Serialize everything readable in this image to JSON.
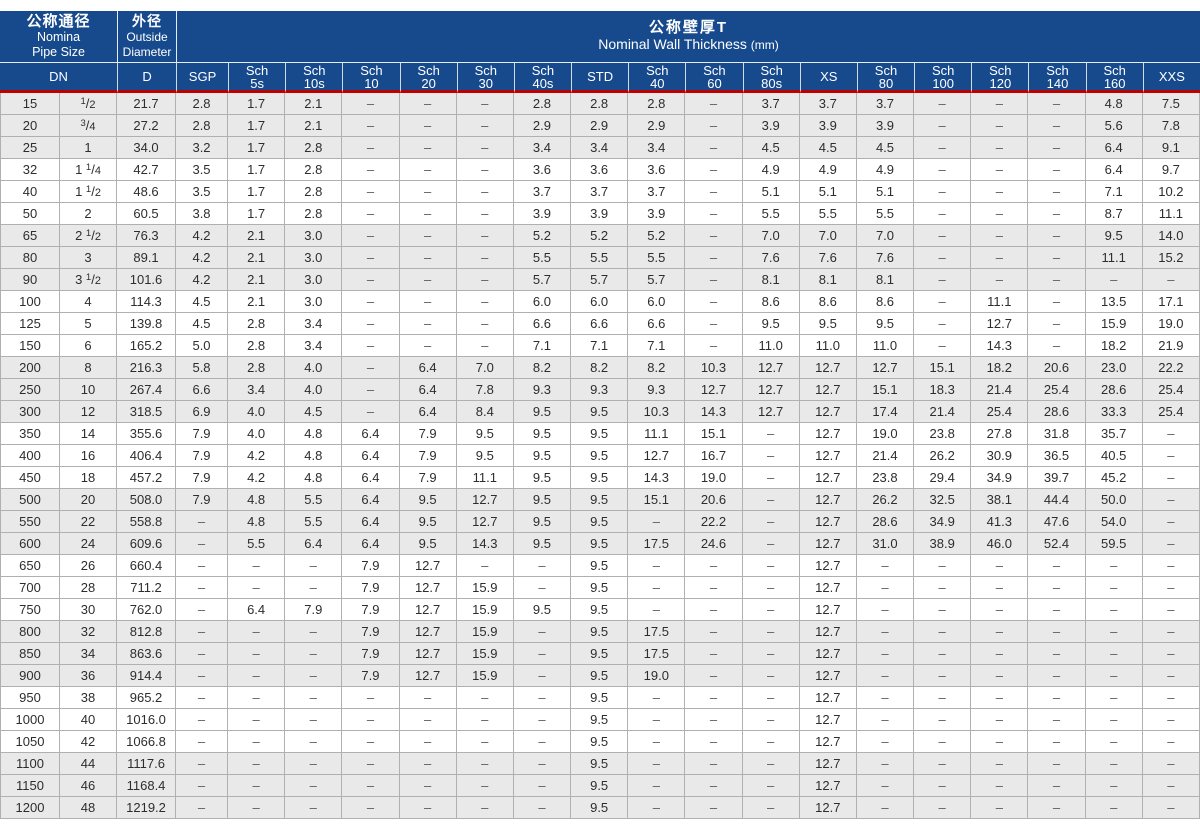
{
  "colors": {
    "header_blue": "#174a8d",
    "accent_red": "#bf0000",
    "stripe_gray": "#e9e9e9",
    "grid_gray": "#b0b0b0",
    "text": "#2d2d2d"
  },
  "header": {
    "pipe_size": {
      "zh": "公称通径",
      "en_line1": "Nomina",
      "en_line2": "Pipe Size"
    },
    "outside_diameter": {
      "zh": "外径",
      "en_line1": "Outside",
      "en_line2": "Diameter"
    },
    "wall_thickness": {
      "zh": "公称壁厚T",
      "en": "Nominal Wall Thickness",
      "unit": "(mm)"
    }
  },
  "sub_headers": [
    "DN",
    "D",
    "SGP",
    "Sch\n5s",
    "Sch\n10s",
    "Sch\n10",
    "Sch\n20",
    "Sch\n30",
    "Sch\n40s",
    "STD",
    "Sch\n40",
    "Sch\n60",
    "Sch\n80s",
    "XS",
    "Sch\n80",
    "Sch\n100",
    "Sch\n120",
    "Sch\n140",
    "Sch\n160",
    "XXS"
  ],
  "rows": [
    [
      "15",
      "1/2",
      "21.7",
      "2.8",
      "1.7",
      "2.1",
      "–",
      "–",
      "–",
      "2.8",
      "2.8",
      "2.8",
      "–",
      "3.7",
      "3.7",
      "3.7",
      "–",
      "–",
      "–",
      "4.8",
      "7.5"
    ],
    [
      "20",
      "3/4",
      "27.2",
      "2.8",
      "1.7",
      "2.1",
      "–",
      "–",
      "–",
      "2.9",
      "2.9",
      "2.9",
      "–",
      "3.9",
      "3.9",
      "3.9",
      "–",
      "–",
      "–",
      "5.6",
      "7.8"
    ],
    [
      "25",
      "1",
      "34.0",
      "3.2",
      "1.7",
      "2.8",
      "–",
      "–",
      "–",
      "3.4",
      "3.4",
      "3.4",
      "–",
      "4.5",
      "4.5",
      "4.5",
      "–",
      "–",
      "–",
      "6.4",
      "9.1"
    ],
    [
      "32",
      "1 1/4",
      "42.7",
      "3.5",
      "1.7",
      "2.8",
      "–",
      "–",
      "–",
      "3.6",
      "3.6",
      "3.6",
      "–",
      "4.9",
      "4.9",
      "4.9",
      "–",
      "–",
      "–",
      "6.4",
      "9.7"
    ],
    [
      "40",
      "1 1/2",
      "48.6",
      "3.5",
      "1.7",
      "2.8",
      "–",
      "–",
      "–",
      "3.7",
      "3.7",
      "3.7",
      "–",
      "5.1",
      "5.1",
      "5.1",
      "–",
      "–",
      "–",
      "7.1",
      "10.2"
    ],
    [
      "50",
      "2",
      "60.5",
      "3.8",
      "1.7",
      "2.8",
      "–",
      "–",
      "–",
      "3.9",
      "3.9",
      "3.9",
      "–",
      "5.5",
      "5.5",
      "5.5",
      "–",
      "–",
      "–",
      "8.7",
      "11.1"
    ],
    [
      "65",
      "2 1/2",
      "76.3",
      "4.2",
      "2.1",
      "3.0",
      "–",
      "–",
      "–",
      "5.2",
      "5.2",
      "5.2",
      "–",
      "7.0",
      "7.0",
      "7.0",
      "–",
      "–",
      "–",
      "9.5",
      "14.0"
    ],
    [
      "80",
      "3",
      "89.1",
      "4.2",
      "2.1",
      "3.0",
      "–",
      "–",
      "–",
      "5.5",
      "5.5",
      "5.5",
      "–",
      "7.6",
      "7.6",
      "7.6",
      "–",
      "–",
      "–",
      "11.1",
      "15.2"
    ],
    [
      "90",
      "3 1/2",
      "101.6",
      "4.2",
      "2.1",
      "3.0",
      "–",
      "–",
      "–",
      "5.7",
      "5.7",
      "5.7",
      "–",
      "8.1",
      "8.1",
      "8.1",
      "–",
      "–",
      "–",
      "–",
      "–"
    ],
    [
      "100",
      "4",
      "114.3",
      "4.5",
      "2.1",
      "3.0",
      "–",
      "–",
      "–",
      "6.0",
      "6.0",
      "6.0",
      "–",
      "8.6",
      "8.6",
      "8.6",
      "–",
      "11.1",
      "–",
      "13.5",
      "17.1"
    ],
    [
      "125",
      "5",
      "139.8",
      "4.5",
      "2.8",
      "3.4",
      "–",
      "–",
      "–",
      "6.6",
      "6.6",
      "6.6",
      "–",
      "9.5",
      "9.5",
      "9.5",
      "–",
      "12.7",
      "–",
      "15.9",
      "19.0"
    ],
    [
      "150",
      "6",
      "165.2",
      "5.0",
      "2.8",
      "3.4",
      "–",
      "–",
      "–",
      "7.1",
      "7.1",
      "7.1",
      "–",
      "11.0",
      "11.0",
      "11.0",
      "–",
      "14.3",
      "–",
      "18.2",
      "21.9"
    ],
    [
      "200",
      "8",
      "216.3",
      "5.8",
      "2.8",
      "4.0",
      "–",
      "6.4",
      "7.0",
      "8.2",
      "8.2",
      "8.2",
      "10.3",
      "12.7",
      "12.7",
      "12.7",
      "15.1",
      "18.2",
      "20.6",
      "23.0",
      "22.2"
    ],
    [
      "250",
      "10",
      "267.4",
      "6.6",
      "3.4",
      "4.0",
      "–",
      "6.4",
      "7.8",
      "9.3",
      "9.3",
      "9.3",
      "12.7",
      "12.7",
      "12.7",
      "15.1",
      "18.3",
      "21.4",
      "25.4",
      "28.6",
      "25.4"
    ],
    [
      "300",
      "12",
      "318.5",
      "6.9",
      "4.0",
      "4.5",
      "–",
      "6.4",
      "8.4",
      "9.5",
      "9.5",
      "10.3",
      "14.3",
      "12.7",
      "12.7",
      "17.4",
      "21.4",
      "25.4",
      "28.6",
      "33.3",
      "25.4"
    ],
    [
      "350",
      "14",
      "355.6",
      "7.9",
      "4.0",
      "4.8",
      "6.4",
      "7.9",
      "9.5",
      "9.5",
      "9.5",
      "11.1",
      "15.1",
      "–",
      "12.7",
      "19.0",
      "23.8",
      "27.8",
      "31.8",
      "35.7",
      "–"
    ],
    [
      "400",
      "16",
      "406.4",
      "7.9",
      "4.2",
      "4.8",
      "6.4",
      "7.9",
      "9.5",
      "9.5",
      "9.5",
      "12.7",
      "16.7",
      "–",
      "12.7",
      "21.4",
      "26.2",
      "30.9",
      "36.5",
      "40.5",
      "–"
    ],
    [
      "450",
      "18",
      "457.2",
      "7.9",
      "4.2",
      "4.8",
      "6.4",
      "7.9",
      "11.1",
      "9.5",
      "9.5",
      "14.3",
      "19.0",
      "–",
      "12.7",
      "23.8",
      "29.4",
      "34.9",
      "39.7",
      "45.2",
      "–"
    ],
    [
      "500",
      "20",
      "508.0",
      "7.9",
      "4.8",
      "5.5",
      "6.4",
      "9.5",
      "12.7",
      "9.5",
      "9.5",
      "15.1",
      "20.6",
      "–",
      "12.7",
      "26.2",
      "32.5",
      "38.1",
      "44.4",
      "50.0",
      "–"
    ],
    [
      "550",
      "22",
      "558.8",
      "–",
      "4.8",
      "5.5",
      "6.4",
      "9.5",
      "12.7",
      "9.5",
      "9.5",
      "–",
      "22.2",
      "–",
      "12.7",
      "28.6",
      "34.9",
      "41.3",
      "47.6",
      "54.0",
      "–"
    ],
    [
      "600",
      "24",
      "609.6",
      "–",
      "5.5",
      "6.4",
      "6.4",
      "9.5",
      "14.3",
      "9.5",
      "9.5",
      "17.5",
      "24.6",
      "–",
      "12.7",
      "31.0",
      "38.9",
      "46.0",
      "52.4",
      "59.5",
      "–"
    ],
    [
      "650",
      "26",
      "660.4",
      "–",
      "–",
      "–",
      "7.9",
      "12.7",
      "–",
      "–",
      "9.5",
      "–",
      "–",
      "–",
      "12.7",
      "–",
      "–",
      "–",
      "–",
      "–",
      "–"
    ],
    [
      "700",
      "28",
      "711.2",
      "–",
      "–",
      "–",
      "7.9",
      "12.7",
      "15.9",
      "–",
      "9.5",
      "–",
      "–",
      "–",
      "12.7",
      "–",
      "–",
      "–",
      "–",
      "–",
      "–"
    ],
    [
      "750",
      "30",
      "762.0",
      "–",
      "6.4",
      "7.9",
      "7.9",
      "12.7",
      "15.9",
      "9.5",
      "9.5",
      "–",
      "–",
      "–",
      "12.7",
      "–",
      "–",
      "–",
      "–",
      "–",
      "–"
    ],
    [
      "800",
      "32",
      "812.8",
      "–",
      "–",
      "–",
      "7.9",
      "12.7",
      "15.9",
      "–",
      "9.5",
      "17.5",
      "–",
      "–",
      "12.7",
      "–",
      "–",
      "–",
      "–",
      "–",
      "–"
    ],
    [
      "850",
      "34",
      "863.6",
      "–",
      "–",
      "–",
      "7.9",
      "12.7",
      "15.9",
      "–",
      "9.5",
      "17.5",
      "–",
      "–",
      "12.7",
      "–",
      "–",
      "–",
      "–",
      "–",
      "–"
    ],
    [
      "900",
      "36",
      "914.4",
      "–",
      "–",
      "–",
      "7.9",
      "12.7",
      "15.9",
      "–",
      "9.5",
      "19.0",
      "–",
      "–",
      "12.7",
      "–",
      "–",
      "–",
      "–",
      "–",
      "–"
    ],
    [
      "950",
      "38",
      "965.2",
      "–",
      "–",
      "–",
      "–",
      "–",
      "–",
      "–",
      "9.5",
      "–",
      "–",
      "–",
      "12.7",
      "–",
      "–",
      "–",
      "–",
      "–",
      "–"
    ],
    [
      "1000",
      "40",
      "1016.0",
      "–",
      "–",
      "–",
      "–",
      "–",
      "–",
      "–",
      "9.5",
      "–",
      "–",
      "–",
      "12.7",
      "–",
      "–",
      "–",
      "–",
      "–",
      "–"
    ],
    [
      "1050",
      "42",
      "1066.8",
      "–",
      "–",
      "–",
      "–",
      "–",
      "–",
      "–",
      "9.5",
      "–",
      "–",
      "–",
      "12.7",
      "–",
      "–",
      "–",
      "–",
      "–",
      "–"
    ],
    [
      "1100",
      "44",
      "1117.6",
      "–",
      "–",
      "–",
      "–",
      "–",
      "–",
      "–",
      "9.5",
      "–",
      "–",
      "–",
      "12.7",
      "–",
      "–",
      "–",
      "–",
      "–",
      "–"
    ],
    [
      "1150",
      "46",
      "1168.4",
      "–",
      "–",
      "–",
      "–",
      "–",
      "–",
      "–",
      "9.5",
      "–",
      "–",
      "–",
      "12.7",
      "–",
      "–",
      "–",
      "–",
      "–",
      "–"
    ],
    [
      "1200",
      "48",
      "1219.2",
      "–",
      "–",
      "–",
      "–",
      "–",
      "–",
      "–",
      "9.5",
      "–",
      "–",
      "–",
      "12.7",
      "–",
      "–",
      "–",
      "–",
      "–",
      "–"
    ]
  ]
}
